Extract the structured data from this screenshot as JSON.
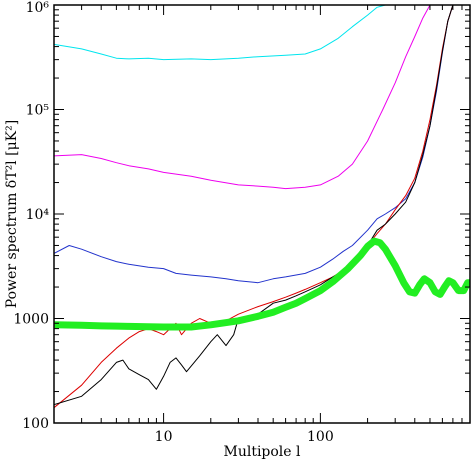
{
  "chart_data": {
    "type": "line",
    "xlabel": "Multipole l",
    "ylabel": "Power spectrum δT²l [μK²]",
    "x_scale": "log",
    "y_scale": "log",
    "xlim": [
      2,
      900
    ],
    "ylim": [
      100,
      1000000
    ],
    "grid": false,
    "x_ticks": [
      {
        "value": 10,
        "label": "10"
      },
      {
        "value": 100,
        "label": "100"
      }
    ],
    "y_ticks": [
      {
        "value": 100,
        "label": "100"
      },
      {
        "value": 1000,
        "label": "1000"
      },
      {
        "value": 10000,
        "label": "10⁴"
      },
      {
        "value": 100000,
        "label": "10⁵"
      },
      {
        "value": 1000000,
        "label": "10⁶"
      }
    ],
    "series": [
      {
        "color": "#00e5ee",
        "stroke_width": 1,
        "points": [
          [
            2,
            420000
          ],
          [
            3,
            380000
          ],
          [
            4,
            340000
          ],
          [
            5,
            310000
          ],
          [
            6,
            305000
          ],
          [
            8,
            310000
          ],
          [
            10,
            300000
          ],
          [
            15,
            305000
          ],
          [
            20,
            300000
          ],
          [
            30,
            310000
          ],
          [
            40,
            320000
          ],
          [
            60,
            330000
          ],
          [
            80,
            340000
          ],
          [
            100,
            380000
          ],
          [
            130,
            480000
          ],
          [
            160,
            620000
          ],
          [
            200,
            800000
          ],
          [
            230,
            950000
          ],
          [
            260,
            1000000
          ]
        ]
      },
      {
        "color": "#ee00ee",
        "stroke_width": 1,
        "points": [
          [
            2,
            36000
          ],
          [
            3,
            37000
          ],
          [
            4,
            34000
          ],
          [
            5,
            31000
          ],
          [
            6,
            29000
          ],
          [
            8,
            27000
          ],
          [
            10,
            25000
          ],
          [
            15,
            23000
          ],
          [
            20,
            21000
          ],
          [
            30,
            19000
          ],
          [
            40,
            18500
          ],
          [
            50,
            18000
          ],
          [
            60,
            17500
          ],
          [
            80,
            18000
          ],
          [
            100,
            19000
          ],
          [
            130,
            23000
          ],
          [
            160,
            30000
          ],
          [
            200,
            50000
          ],
          [
            250,
            100000
          ],
          [
            300,
            180000
          ],
          [
            350,
            320000
          ],
          [
            400,
            500000
          ],
          [
            450,
            750000
          ],
          [
            500,
            1000000
          ]
        ]
      },
      {
        "color": "#2233cc",
        "stroke_width": 1,
        "points": [
          [
            2,
            4200
          ],
          [
            2.5,
            5000
          ],
          [
            3,
            4600
          ],
          [
            4,
            3900
          ],
          [
            5,
            3500
          ],
          [
            6,
            3300
          ],
          [
            8,
            3100
          ],
          [
            10,
            3000
          ],
          [
            12,
            2700
          ],
          [
            15,
            2600
          ],
          [
            20,
            2500
          ],
          [
            25,
            2400
          ],
          [
            30,
            2300
          ],
          [
            40,
            2200
          ],
          [
            50,
            2400
          ],
          [
            60,
            2500
          ],
          [
            80,
            2700
          ],
          [
            100,
            3100
          ],
          [
            120,
            3700
          ],
          [
            140,
            4400
          ],
          [
            160,
            5000
          ],
          [
            200,
            7000
          ],
          [
            230,
            9000
          ],
          [
            260,
            10000
          ],
          [
            300,
            11500
          ],
          [
            350,
            14000
          ],
          [
            400,
            20000
          ],
          [
            450,
            35000
          ],
          [
            500,
            70000
          ],
          [
            550,
            150000
          ],
          [
            600,
            350000
          ],
          [
            650,
            700000
          ],
          [
            700,
            1000000
          ]
        ]
      },
      {
        "color": "#dd0000",
        "stroke_width": 1,
        "points": [
          [
            2,
            140
          ],
          [
            3,
            230
          ],
          [
            4,
            380
          ],
          [
            5,
            520
          ],
          [
            6,
            650
          ],
          [
            7,
            750
          ],
          [
            8,
            800
          ],
          [
            9,
            750
          ],
          [
            10,
            700
          ],
          [
            11,
            800
          ],
          [
            12,
            900
          ],
          [
            13,
            700
          ],
          [
            15,
            900
          ],
          [
            17,
            1000
          ],
          [
            20,
            900
          ],
          [
            25,
            950
          ],
          [
            30,
            1100
          ],
          [
            40,
            1300
          ],
          [
            50,
            1450
          ],
          [
            60,
            1600
          ],
          [
            70,
            1750
          ],
          [
            80,
            1900
          ],
          [
            100,
            2200
          ],
          [
            120,
            2500
          ],
          [
            150,
            3100
          ],
          [
            180,
            4000
          ],
          [
            200,
            5000
          ],
          [
            230,
            6500
          ],
          [
            260,
            8000
          ],
          [
            300,
            11000
          ],
          [
            350,
            15000
          ],
          [
            400,
            22000
          ],
          [
            450,
            40000
          ],
          [
            500,
            80000
          ],
          [
            550,
            170000
          ],
          [
            600,
            380000
          ],
          [
            650,
            700000
          ],
          [
            700,
            1000000
          ]
        ]
      },
      {
        "color": "#000000",
        "stroke_width": 1,
        "points": [
          [
            2,
            150
          ],
          [
            3,
            180
          ],
          [
            4,
            260
          ],
          [
            5,
            380
          ],
          [
            5.5,
            400
          ],
          [
            6,
            330
          ],
          [
            7,
            290
          ],
          [
            8,
            260
          ],
          [
            9,
            210
          ],
          [
            10,
            280
          ],
          [
            11,
            380
          ],
          [
            12,
            420
          ],
          [
            13,
            360
          ],
          [
            14,
            310
          ],
          [
            15,
            350
          ],
          [
            17,
            440
          ],
          [
            20,
            600
          ],
          [
            22,
            700
          ],
          [
            25,
            550
          ],
          [
            28,
            700
          ],
          [
            30,
            1000
          ],
          [
            35,
            1050
          ],
          [
            40,
            1100
          ],
          [
            50,
            1400
          ],
          [
            60,
            1500
          ],
          [
            70,
            1650
          ],
          [
            80,
            1800
          ],
          [
            100,
            2100
          ],
          [
            120,
            2500
          ],
          [
            150,
            3000
          ],
          [
            180,
            4000
          ],
          [
            200,
            5000
          ],
          [
            230,
            7000
          ],
          [
            260,
            8000
          ],
          [
            300,
            10000
          ],
          [
            350,
            13000
          ],
          [
            400,
            20000
          ],
          [
            450,
            37000
          ],
          [
            500,
            70000
          ],
          [
            550,
            160000
          ],
          [
            600,
            360000
          ],
          [
            650,
            700000
          ],
          [
            700,
            1000000
          ]
        ]
      },
      {
        "color": "#22ee22",
        "stroke_width": 7,
        "points": [
          [
            2,
            870
          ],
          [
            3,
            860
          ],
          [
            4,
            850
          ],
          [
            5,
            845
          ],
          [
            6,
            840
          ],
          [
            8,
            835
          ],
          [
            10,
            830
          ],
          [
            15,
            830
          ],
          [
            20,
            870
          ],
          [
            30,
            950
          ],
          [
            40,
            1050
          ],
          [
            50,
            1150
          ],
          [
            60,
            1280
          ],
          [
            70,
            1400
          ],
          [
            80,
            1550
          ],
          [
            100,
            1850
          ],
          [
            120,
            2250
          ],
          [
            150,
            3000
          ],
          [
            180,
            4000
          ],
          [
            200,
            4900
          ],
          [
            220,
            5500
          ],
          [
            240,
            5300
          ],
          [
            260,
            4600
          ],
          [
            300,
            3200
          ],
          [
            340,
            2200
          ],
          [
            370,
            1800
          ],
          [
            400,
            1750
          ],
          [
            430,
            2100
          ],
          [
            460,
            2400
          ],
          [
            500,
            2200
          ],
          [
            540,
            1800
          ],
          [
            580,
            1700
          ],
          [
            620,
            2000
          ],
          [
            660,
            2300
          ],
          [
            700,
            2200
          ],
          [
            760,
            1850
          ],
          [
            820,
            1850
          ],
          [
            870,
            2200
          ],
          [
            900,
            2200
          ]
        ]
      }
    ]
  }
}
